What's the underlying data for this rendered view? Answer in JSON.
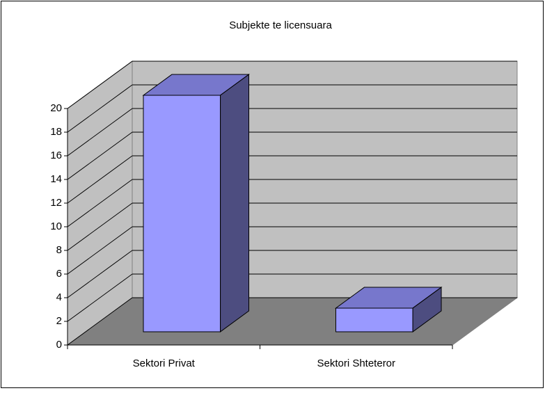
{
  "chart_data": {
    "type": "bar3d",
    "title": "Subjekte te licensuara",
    "categories": [
      "Sektori Privat",
      "Sektori Shteteror"
    ],
    "values": [
      20,
      2
    ],
    "color": "#9999ff",
    "ylim": [
      0,
      20
    ],
    "yticks": [
      0,
      2,
      4,
      6,
      8,
      10,
      12,
      14,
      16,
      18,
      20
    ],
    "grid": true
  }
}
